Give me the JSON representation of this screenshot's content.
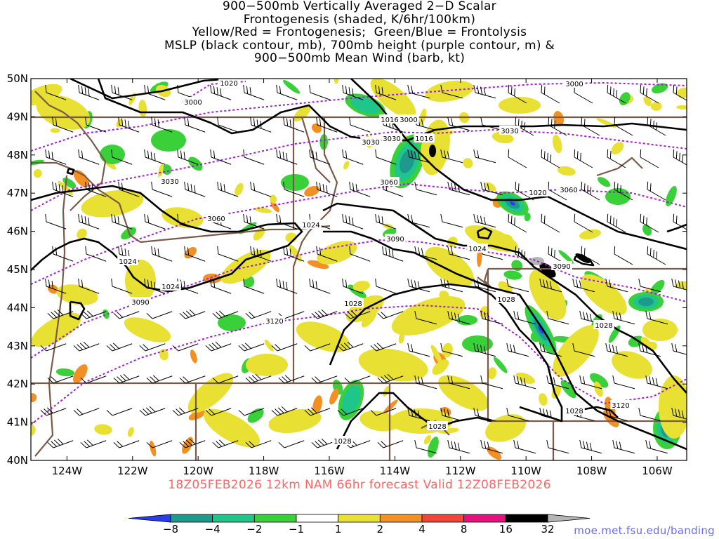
{
  "title_lines": [
    "900−500mb Vertically Averaged 2−D Scalar",
    "Frontogenesis (shaded, K/6hr/100km)",
    "Yellow/Red = Frontogenesis;  Green/Blue = Frontolysis",
    "MSLP (black contour, mb), 700mb height (purple contour, m) &",
    "900−500mb Mean Wind (barb, kt)"
  ],
  "subtitle": "18Z05FEB2026 12km NAM 66hr forecast Valid 12Z08FEB2026",
  "credit": "moe.met.fsu.edu/banding",
  "axes": {
    "lon_labels": [
      "124W",
      "122W",
      "120W",
      "118W",
      "116W",
      "114W",
      "112W",
      "110W",
      "108W",
      "106W"
    ],
    "lon_values": [
      -124,
      -122,
      -120,
      -118,
      -116,
      -114,
      -112,
      -110,
      -108,
      -106
    ],
    "lat_labels": [
      "50N",
      "49N",
      "48N",
      "47N",
      "46N",
      "45N",
      "44N",
      "43N",
      "42N",
      "41N",
      "40N"
    ],
    "lat_values": [
      50,
      49,
      48,
      47,
      46,
      45,
      44,
      43,
      42,
      41,
      40
    ],
    "lon_range": [
      -125.1,
      -105.1
    ],
    "lat_range": [
      40,
      50
    ]
  },
  "colorbar": {
    "labels": [
      "−8",
      "−4",
      "−2",
      "−1",
      "1",
      "2",
      "4",
      "8",
      "16",
      "32"
    ],
    "colors": [
      "#2b3cf0",
      "#1e9a8c",
      "#1fc58a",
      "#39d039",
      "#ffffff",
      "#e8e032",
      "#f29024",
      "#f24438",
      "#e8107c",
      "#000000",
      "#b5b5b5"
    ]
  },
  "colors": {
    "mslp": "#000000",
    "height": "#a020d0",
    "border": "#7a5a48",
    "barb": "#000000"
  },
  "mslp_labels": [
    "1020",
    "1016",
    "1020",
    "1024",
    "1024",
    "1024",
    "1024",
    "1028",
    "1028",
    "1028",
    "1028",
    "1028"
  ],
  "height_labels": [
    "3000",
    "3000",
    "3000",
    "3030",
    "3030",
    "3030",
    "3030",
    "3060",
    "3060",
    "3060",
    "3090",
    "3090",
    "3090",
    "3120",
    "3120"
  ]
}
